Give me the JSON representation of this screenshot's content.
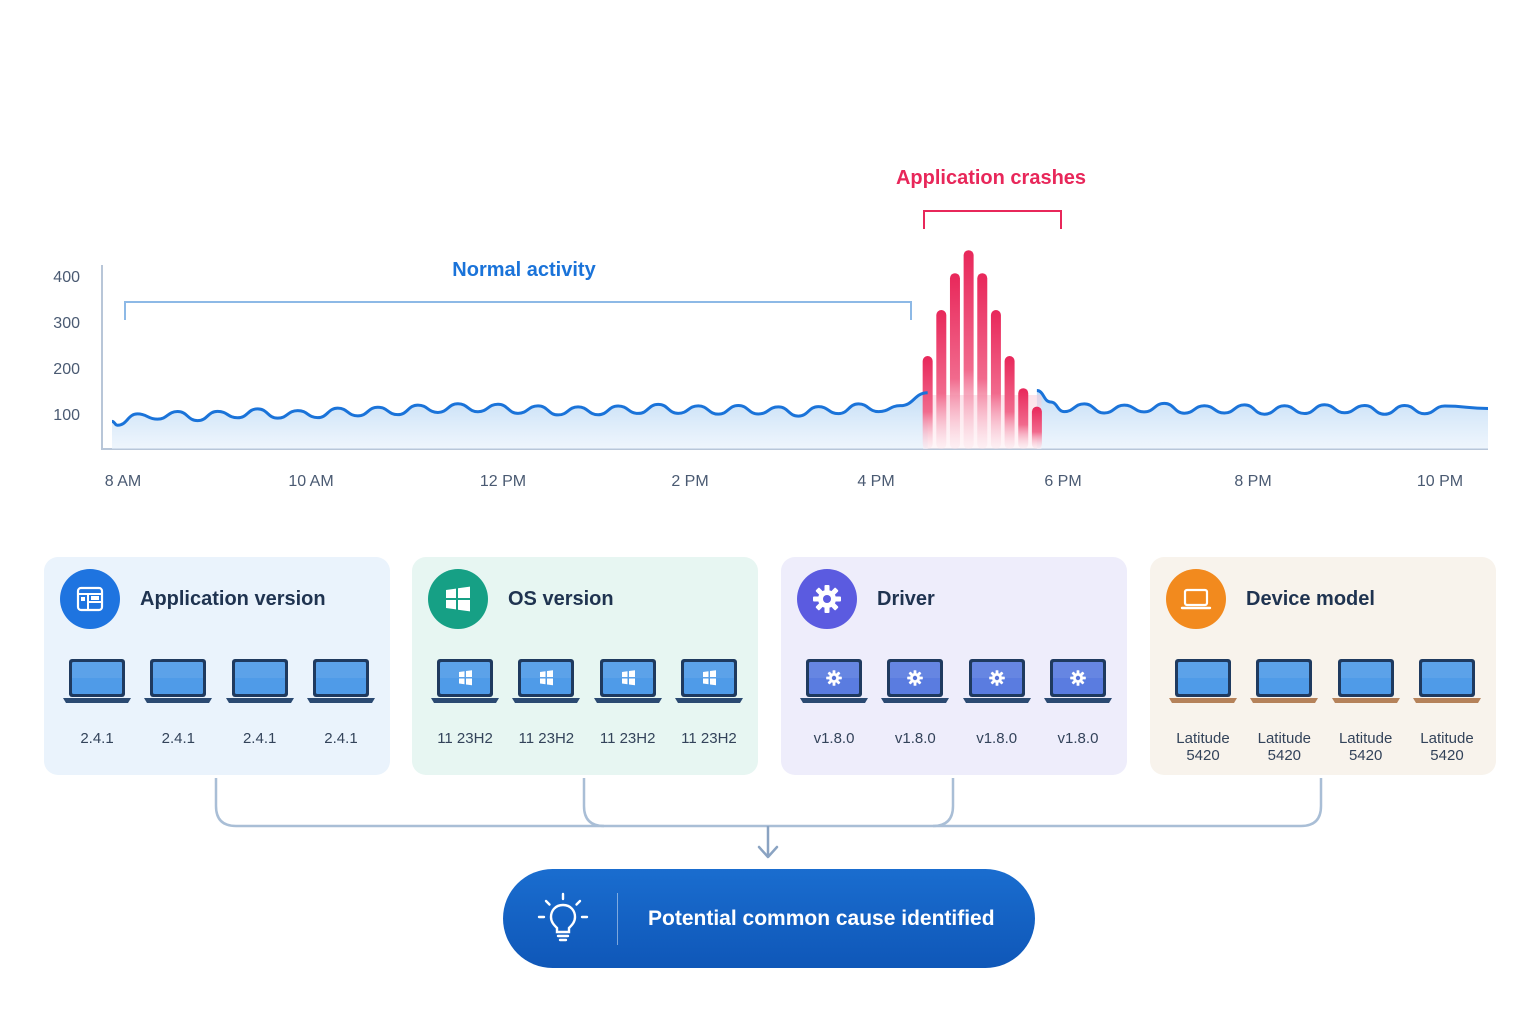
{
  "chart_data": {
    "type": "line",
    "title": "",
    "x_ticks": [
      "8 AM",
      "10 AM",
      "12 PM",
      "2 PM",
      "4 PM",
      "6 PM",
      "8 PM",
      "10 PM"
    ],
    "y_ticks": [
      100,
      200,
      300,
      400
    ],
    "ylim": [
      0,
      420
    ],
    "series": [
      {
        "x_hours": [
          8,
          8.4,
          8.9,
          9.4,
          9.9,
          10.4,
          10.9,
          11.4,
          11.9,
          12.4,
          12.9,
          13.4,
          13.9,
          14.4,
          14.9,
          15.4,
          15.9,
          16.3,
          16.6,
          16.8,
          17.0,
          17.2,
          17.4,
          17.6,
          17.8,
          18.0,
          18.2,
          18.6,
          19.0,
          19.4,
          19.8,
          20.2,
          20.6,
          21.0,
          21.4,
          21.8,
          22.2,
          22.6
        ],
        "values": [
          60,
          72,
          68,
          77,
          72,
          78,
          80,
          86,
          88,
          84,
          80,
          82,
          86,
          82,
          84,
          78,
          84,
          90,
          110,
          125,
          150,
          200,
          235,
          170,
          150,
          125,
          100,
          86,
          84,
          90,
          82,
          86,
          82,
          84,
          86,
          82,
          84,
          82
        ]
      }
    ],
    "crash_bars": {
      "x_hours": [
        16.85,
        17.0,
        17.15,
        17.3,
        17.45,
        17.6,
        17.75,
        17.9,
        18.05
      ],
      "values": [
        200,
        300,
        380,
        430,
        380,
        300,
        200,
        130,
        90
      ]
    },
    "annotations": {
      "normal": "Normal activity",
      "crashes": "Application crashes"
    }
  },
  "colors": {
    "line": "#1a73d9",
    "area": "#cfe3f7",
    "crash": "#e8275a",
    "accent": "#0f57b8"
  },
  "cards": [
    {
      "title": "Application version",
      "icon": "app-window-icon",
      "bg": "#eaf3fc",
      "icon_bg": "#1e74e0",
      "screen": "plain",
      "devices": [
        "2.4.1",
        "2.4.1",
        "2.4.1",
        "2.4.1"
      ]
    },
    {
      "title": "OS version",
      "icon": "windows-logo-icon",
      "bg": "#e7f6f2",
      "icon_bg": "#16a085",
      "screen": "windows",
      "devices": [
        "11 23H2",
        "11 23H2",
        "11 23H2",
        "11 23H2"
      ]
    },
    {
      "title": "Driver",
      "icon": "gear-icon",
      "bg": "#eeedfb",
      "icon_bg": "#5b5be0",
      "screen": "gear",
      "devices": [
        "v1.8.0",
        "v1.8.0",
        "v1.8.0",
        "v1.8.0"
      ]
    },
    {
      "title": "Device model",
      "icon": "laptop-icon",
      "bg": "#f8f3ec",
      "icon_bg": "#f28a1e",
      "screen": "plain",
      "devices": [
        "Latitude 5420",
        "Latitude 5420",
        "Latitude 5420",
        "Latitude 5420"
      ]
    }
  ],
  "result": {
    "label": "Potential common cause identified",
    "icon": "lightbulb-icon"
  }
}
